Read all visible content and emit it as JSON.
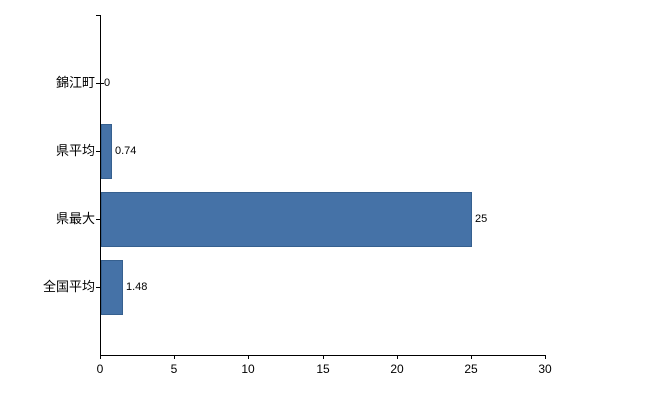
{
  "chart_data": {
    "type": "bar",
    "orientation": "horizontal",
    "title": "",
    "categories": [
      "錦江町",
      "県平均",
      "県最大",
      "全国平均"
    ],
    "values": [
      0,
      0.74,
      25,
      1.48
    ],
    "value_labels": [
      "0",
      "0.74",
      "25",
      "1.48"
    ],
    "xlim": [
      0,
      30
    ],
    "x_ticks": [
      0,
      5,
      10,
      15,
      20,
      25,
      30
    ],
    "x_tick_labels": [
      "0",
      "5",
      "10",
      "15",
      "20",
      "25",
      "30"
    ],
    "grid": false,
    "legend": false,
    "bar_color": "#4572A7",
    "bar_border_color": "#36608F",
    "axis_color": "#000000",
    "text_color": "#000000",
    "background_color": "#FFFFFF"
  }
}
